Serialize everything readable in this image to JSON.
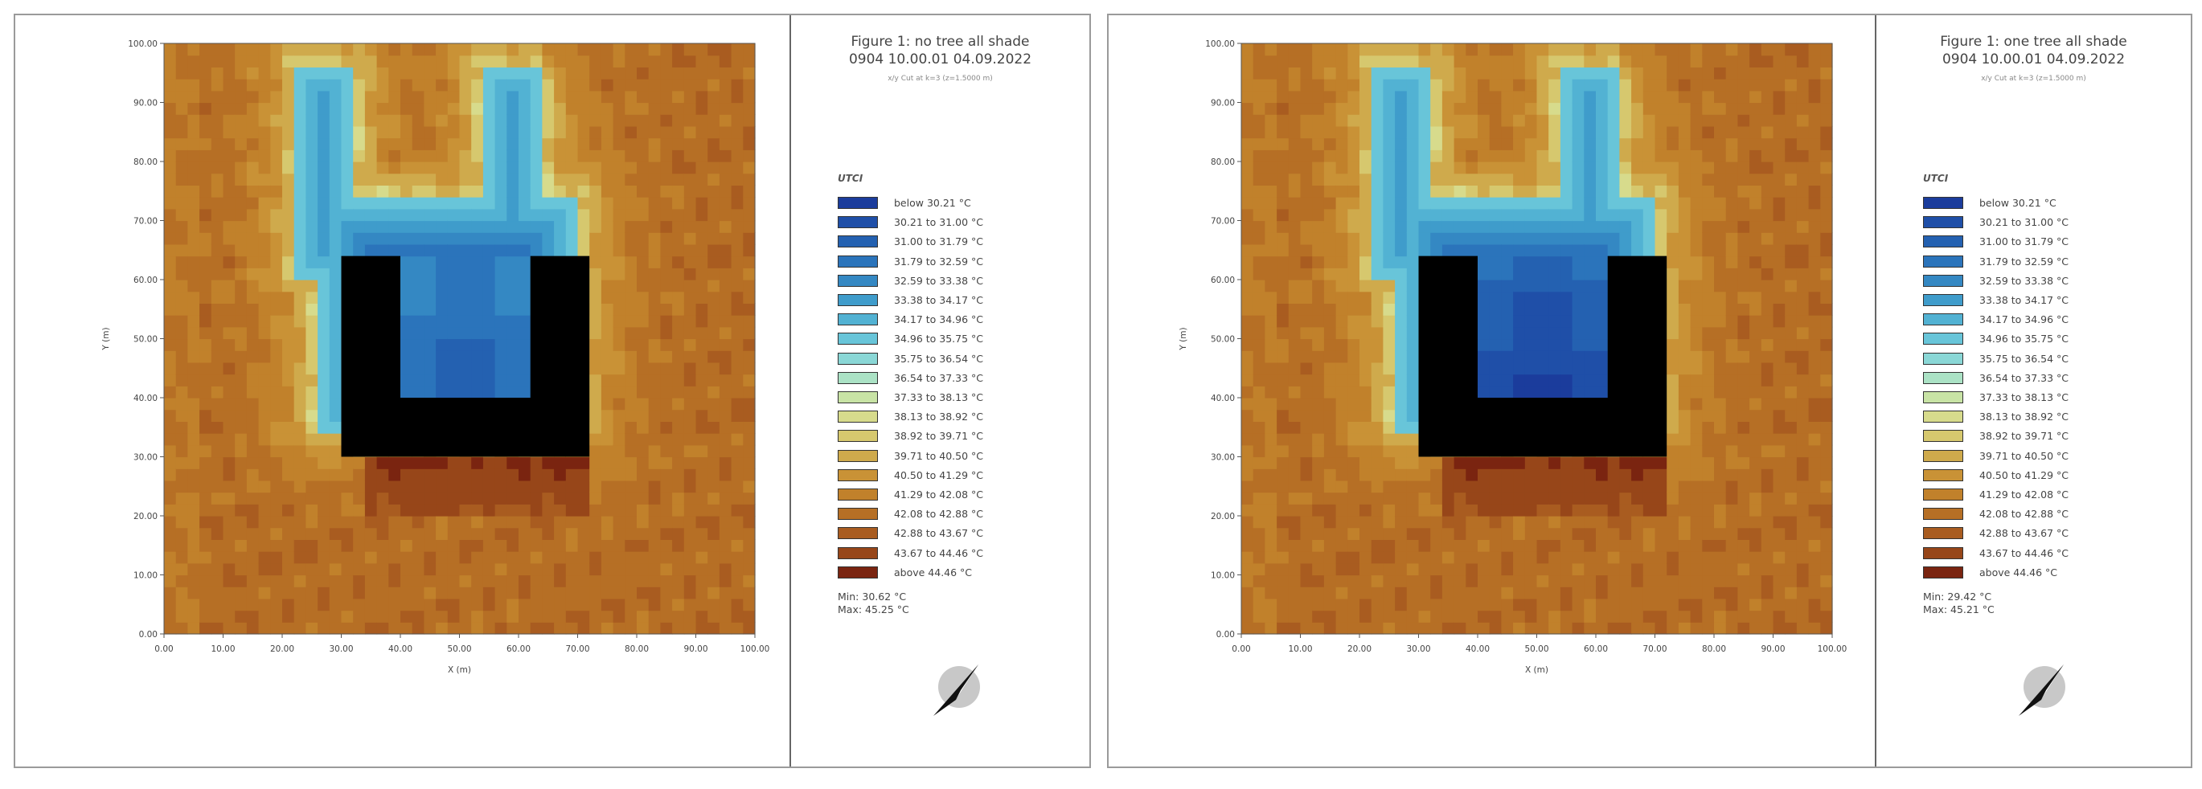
{
  "legend": {
    "title": "UTCI",
    "items": [
      "below 30.21 °C",
      "30.21 to 31.00 °C",
      "31.00 to 31.79 °C",
      "31.79 to 32.59 °C",
      "32.59 to 33.38 °C",
      "33.38 to 34.17 °C",
      "34.17 to 34.96 °C",
      "34.96 to 35.75 °C",
      "35.75 to 36.54 °C",
      "36.54 to 37.33 °C",
      "37.33 to 38.13 °C",
      "38.13 to 38.92 °C",
      "38.92 to 39.71 °C",
      "39.71 to 40.50 °C",
      "40.50 to 41.29 °C",
      "41.29 to 42.08 °C",
      "42.08 to 42.88 °C",
      "42.88 to 43.67 °C",
      "43.67 to 44.46 °C",
      "above 44.46 °C"
    ],
    "thresholds": [
      30.21,
      31.0,
      31.79,
      32.59,
      33.38,
      34.17,
      34.96,
      35.75,
      36.54,
      37.33,
      38.13,
      38.92,
      39.71,
      40.5,
      41.29,
      42.08,
      42.88,
      43.67,
      44.46
    ],
    "colors": [
      "#1b3c9c",
      "#1f4fa8",
      "#2461b1",
      "#2b74bb",
      "#3488c3",
      "#3f9ccb",
      "#52b2d3",
      "#68c5d9",
      "#8ad7d6",
      "#abe2c5",
      "#c8e3a5",
      "#d7db8c",
      "#d6c86e",
      "#cfaa4c",
      "#c99236",
      "#c1812b",
      "#b66f25",
      "#a95c20",
      "#974619",
      "#7a2410"
    ]
  },
  "chart_data": [
    {
      "type": "heatmap",
      "title": "Figure 1: no tree all shade",
      "subtitle": "0904 10.00.01 04.09.2022",
      "caption": "x/y Cut at k=3 (z=1.5000 m)",
      "xlabel": "X (m)",
      "ylabel": "Y (m)",
      "xlim": [
        0,
        100
      ],
      "ylim": [
        0,
        100
      ],
      "xticks": [
        "0.00",
        "10.00",
        "20.00",
        "30.00",
        "40.00",
        "50.00",
        "60.00",
        "70.00",
        "80.00",
        "90.00",
        "100.00"
      ],
      "yticks": [
        "0.00",
        "10.00",
        "20.00",
        "30.00",
        "40.00",
        "50.00",
        "60.00",
        "70.00",
        "80.00",
        "90.00",
        "100.00"
      ],
      "min_label": "Min: 30.62 °C",
      "max_label": "Max: 45.25 °C",
      "building": {
        "outer": [
          30,
          30,
          72,
          64
        ],
        "courtyard": [
          40,
          40,
          62,
          64
        ],
        "color": "#000000"
      },
      "courtyard_offset": 0
    },
    {
      "type": "heatmap",
      "title": "Figure 1: one tree all shade",
      "subtitle": "0904 10.00.01 04.09.2022",
      "caption": "x/y Cut at k=3 (z=1.5000 m)",
      "xlabel": "X (m)",
      "ylabel": "Y (m)",
      "xlim": [
        0,
        100
      ],
      "ylim": [
        0,
        100
      ],
      "xticks": [
        "0.00",
        "10.00",
        "20.00",
        "30.00",
        "40.00",
        "50.00",
        "60.00",
        "70.00",
        "80.00",
        "90.00",
        "100.00"
      ],
      "yticks": [
        "0.00",
        "10.00",
        "20.00",
        "30.00",
        "40.00",
        "50.00",
        "60.00",
        "70.00",
        "80.00",
        "90.00",
        "100.00"
      ],
      "min_label": "Min: 29.42 °C",
      "max_label": "Max: 45.21 °C",
      "building": {
        "outer": [
          30,
          30,
          72,
          64
        ],
        "courtyard": [
          40,
          40,
          62,
          64
        ],
        "color": "#000000"
      },
      "courtyard_offset": -1.2
    }
  ],
  "icons": {
    "compass": "north-arrow-icon"
  }
}
